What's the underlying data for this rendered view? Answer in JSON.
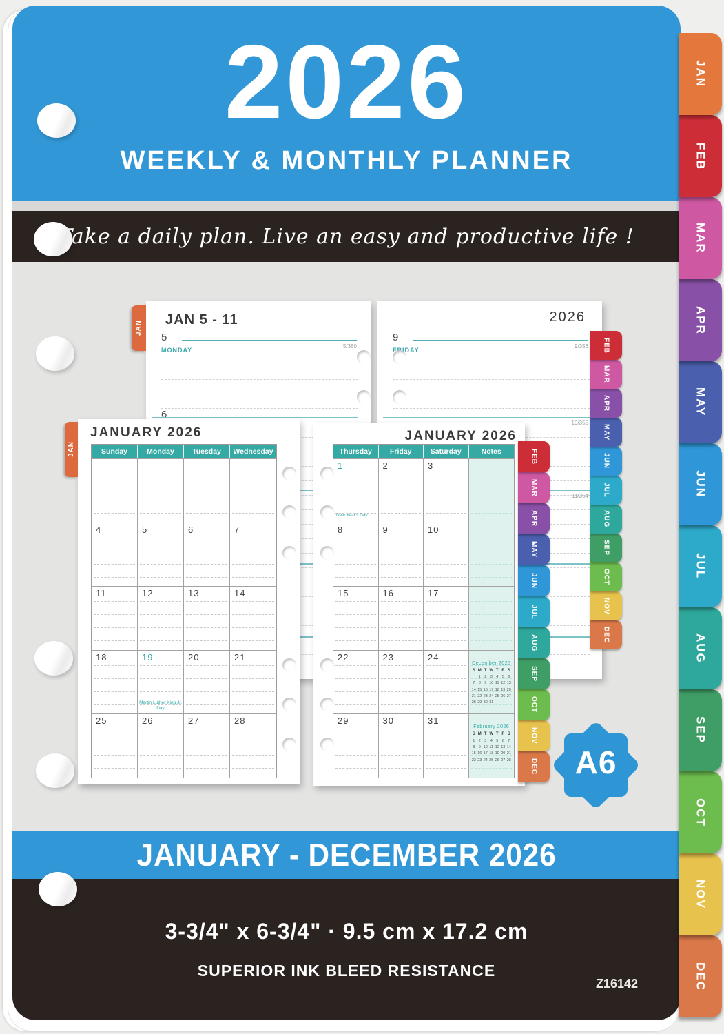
{
  "header": {
    "year": "2026",
    "subtitle": "WEEKLY & MONTHLY PLANNER"
  },
  "tagline": "Take a daily plan. Live an easy and productive life !",
  "month_tabs": [
    {
      "label": "JAN",
      "color": "#e4783c"
    },
    {
      "label": "FEB",
      "color": "#cd2d37"
    },
    {
      "label": "MAR",
      "color": "#cf58a2"
    },
    {
      "label": "APR",
      "color": "#8850a6"
    },
    {
      "label": "MAY",
      "color": "#4a5fae"
    },
    {
      "label": "JUN",
      "color": "#2f97d7"
    },
    {
      "label": "JUL",
      "color": "#2da9c9"
    },
    {
      "label": "AUG",
      "color": "#2ea89c"
    },
    {
      "label": "SEP",
      "color": "#3f9e66"
    },
    {
      "label": "OCT",
      "color": "#6cbc4e"
    },
    {
      "label": "NOV",
      "color": "#e7c24c"
    },
    {
      "label": "DEC",
      "color": "#da7849"
    }
  ],
  "weekly_left": {
    "tab": "JAN",
    "title": "JAN 5 - 11",
    "day": "5",
    "weekday": "MONDAY",
    "marker": "5/360",
    "next_day": "6"
  },
  "weekly_right": {
    "year": "2026",
    "day": "9",
    "weekday": "FRIDAY",
    "marker": "9/356",
    "markers": [
      "10/355",
      "11/354"
    ]
  },
  "monthly_left": {
    "tab": "JAN",
    "title": "JANUARY 2026",
    "headers": [
      "Sunday",
      "Monday",
      "Tuesday",
      "Wednesday"
    ],
    "rows": [
      [
        "",
        "",
        "",
        ""
      ],
      [
        "4",
        "5",
        "6",
        "7"
      ],
      [
        "11",
        "12",
        "13",
        "14"
      ],
      [
        "18",
        "19",
        "20",
        "21"
      ],
      [
        "25",
        "26",
        "27",
        "28"
      ]
    ],
    "holiday_date": "19",
    "holiday_label": "Martin Luther King Jr. Day"
  },
  "monthly_right": {
    "title": "JANUARY 2026",
    "headers": [
      "Thursday",
      "Friday",
      "Saturday",
      "Notes"
    ],
    "rows": [
      [
        "1",
        "2",
        "3"
      ],
      [
        "8",
        "9",
        "10"
      ],
      [
        "15",
        "16",
        "17"
      ],
      [
        "22",
        "23",
        "24"
      ],
      [
        "29",
        "30",
        "31"
      ]
    ],
    "holiday_date": "1",
    "holiday_label": "New Year's Day",
    "mini_calendars": [
      {
        "title": "December 2025",
        "weekdays": [
          "S",
          "M",
          "T",
          "W",
          "T",
          "F",
          "S"
        ],
        "weeks": [
          [
            "",
            "1",
            "2",
            "3",
            "4",
            "5",
            "6"
          ],
          [
            "7",
            "8",
            "9",
            "10",
            "11",
            "12",
            "13"
          ],
          [
            "14",
            "15",
            "16",
            "17",
            "18",
            "19",
            "20"
          ],
          [
            "21",
            "22",
            "23",
            "24",
            "25",
            "26",
            "27"
          ],
          [
            "28",
            "29",
            "30",
            "31",
            "",
            "",
            ""
          ]
        ]
      },
      {
        "title": "February 2026",
        "weekdays": [
          "S",
          "M",
          "T",
          "W",
          "T",
          "F",
          "S"
        ],
        "weeks": [
          [
            "1",
            "2",
            "3",
            "4",
            "5",
            "6",
            "7"
          ],
          [
            "8",
            "9",
            "10",
            "11",
            "12",
            "13",
            "14"
          ],
          [
            "15",
            "16",
            "17",
            "18",
            "19",
            "20",
            "21"
          ],
          [
            "22",
            "23",
            "24",
            "25",
            "26",
            "27",
            "28"
          ]
        ]
      }
    ]
  },
  "badge": "A6",
  "range_banner": "JANUARY - DECEMBER 2026",
  "footer": {
    "size": "3-3/4\" x 6-3/4\" ·  9.5 cm x 17.2 cm",
    "feature": "SUPERIOR INK BLEED RESISTANCE",
    "sku": "Z16142"
  }
}
